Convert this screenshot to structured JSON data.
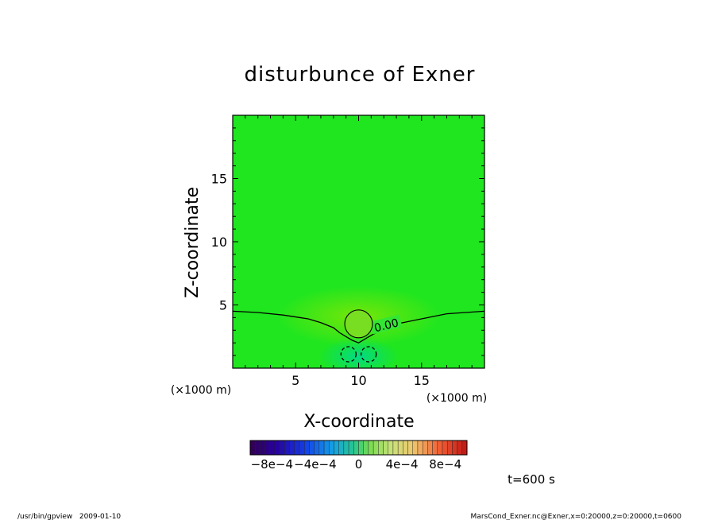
{
  "chart_data": {
    "type": "heatmap",
    "title": "disturbunce of Exner",
    "xlabel": "X-coordinate",
    "ylabel": "Z-coordinate",
    "x_unit": "(×1000 m)",
    "y_unit": "(×1000 m)",
    "xlim": [
      0,
      20
    ],
    "ylim": [
      0,
      20
    ],
    "x_ticks": [
      5,
      10,
      15
    ],
    "y_ticks": [
      5,
      10,
      15
    ],
    "contour_label": "0.00",
    "zero_contour": {
      "x": [
        0,
        2,
        4,
        6,
        7,
        8,
        8.5,
        9,
        9.5,
        10,
        10.5,
        11,
        12,
        13,
        15,
        17,
        20
      ],
      "z": [
        4.5,
        4.4,
        4.2,
        3.9,
        3.6,
        3.2,
        2.8,
        2.5,
        2.2,
        2.0,
        2.3,
        2.6,
        3.1,
        3.5,
        3.9,
        4.3,
        4.5
      ]
    },
    "positive_blob": {
      "cx": 10.0,
      "cz": 3.5,
      "rx": 1.1,
      "rz": 1.1
    },
    "negative_contours": [
      {
        "cx": 9.2,
        "cz": 1.1,
        "rx": 0.6,
        "rz": 0.6
      },
      {
        "cx": 10.8,
        "cz": 1.1,
        "rx": 0.6,
        "rz": 0.6
      }
    ],
    "colorbar": {
      "min": -0.001,
      "max": 0.001,
      "labels": [
        "−8e−4",
        "−4e−4",
        "0",
        "4e−4",
        "8e−4"
      ],
      "label_values": [
        -0.0008,
        -0.0004,
        0,
        0.0004,
        0.0008
      ]
    },
    "time_label": "t=600 s",
    "footer_left": "/usr/bin/gpview   2009-01-10",
    "footer_right": "MarsCond_Exner.nc@Exner,x=0:20000,z=0:20000,t=0600"
  }
}
